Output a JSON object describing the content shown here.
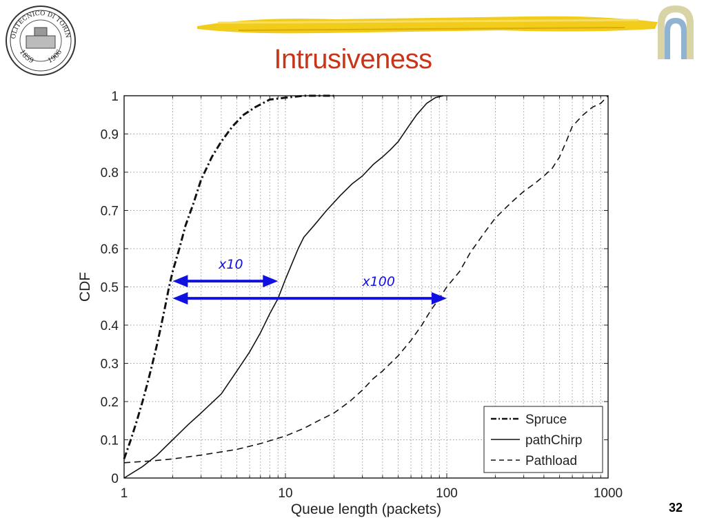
{
  "slide": {
    "title": "Intrusiveness",
    "page_number": "32",
    "logo_left_text": [
      "POLITECNICO DI TORINO",
      "1859",
      "1906"
    ]
  },
  "colors": {
    "title": "#c8361a",
    "annotation_arrows": "#1010e0",
    "brush_stroke": "#f2cc1a"
  },
  "icons": [
    "politecnico-seal-icon",
    "gold-brush-stroke-icon",
    "arch-logo-icon"
  ],
  "chart_data": {
    "type": "line",
    "xscale": "log",
    "xlim": [
      1,
      1000
    ],
    "ylim": [
      0,
      1
    ],
    "xlabel": "Queue length (packets)",
    "ylabel": "CDF",
    "xticks": [
      1,
      10,
      100,
      1000
    ],
    "xtick_labels": [
      "1",
      "10",
      "100",
      "1000"
    ],
    "yticks": [
      0,
      0.1,
      0.2,
      0.3,
      0.4,
      0.5,
      0.6,
      0.7,
      0.8,
      0.9,
      1
    ],
    "ytick_labels": [
      "0",
      "0.1",
      "0.2",
      "0.3",
      "0.4",
      "0.5",
      "0.6",
      "0.7",
      "0.8",
      "0.9",
      "1"
    ],
    "grid": true,
    "legend_position": "bottom-right",
    "series": [
      {
        "name": "Spruce",
        "dash": "dashdot",
        "points": [
          [
            1,
            0.05
          ],
          [
            1.1,
            0.1
          ],
          [
            1.2,
            0.15
          ],
          [
            1.3,
            0.2
          ],
          [
            1.4,
            0.25
          ],
          [
            1.5,
            0.3
          ],
          [
            1.6,
            0.35
          ],
          [
            1.7,
            0.4
          ],
          [
            1.8,
            0.45
          ],
          [
            1.9,
            0.5
          ],
          [
            2.0,
            0.54
          ],
          [
            2.2,
            0.6
          ],
          [
            2.4,
            0.66
          ],
          [
            2.7,
            0.72
          ],
          [
            3.0,
            0.78
          ],
          [
            3.5,
            0.84
          ],
          [
            4.0,
            0.88
          ],
          [
            4.7,
            0.92
          ],
          [
            5.5,
            0.95
          ],
          [
            6.5,
            0.97
          ],
          [
            8,
            0.99
          ],
          [
            10,
            0.995
          ],
          [
            13,
            1.0
          ],
          [
            20,
            1.0
          ]
        ]
      },
      {
        "name": "pathChirp",
        "dash": "solid",
        "points": [
          [
            1,
            0
          ],
          [
            1.3,
            0.03
          ],
          [
            1.6,
            0.06
          ],
          [
            2,
            0.1
          ],
          [
            2.5,
            0.14
          ],
          [
            3,
            0.17
          ],
          [
            4,
            0.22
          ],
          [
            5,
            0.28
          ],
          [
            6,
            0.33
          ],
          [
            7,
            0.38
          ],
          [
            8,
            0.43
          ],
          [
            9,
            0.47
          ],
          [
            10,
            0.52
          ],
          [
            12,
            0.6
          ],
          [
            13,
            0.63
          ],
          [
            15,
            0.66
          ],
          [
            18,
            0.7
          ],
          [
            22,
            0.74
          ],
          [
            26,
            0.77
          ],
          [
            30,
            0.79
          ],
          [
            35,
            0.82
          ],
          [
            40,
            0.84
          ],
          [
            45,
            0.86
          ],
          [
            50,
            0.88
          ],
          [
            58,
            0.92
          ],
          [
            65,
            0.95
          ],
          [
            75,
            0.98
          ],
          [
            85,
            0.995
          ],
          [
            95,
            1.0
          ]
        ]
      },
      {
        "name": "Pathload",
        "dash": "dashed",
        "points": [
          [
            1,
            0.04
          ],
          [
            1.5,
            0.045
          ],
          [
            2,
            0.05
          ],
          [
            3,
            0.06
          ],
          [
            5,
            0.075
          ],
          [
            7,
            0.09
          ],
          [
            10,
            0.11
          ],
          [
            13,
            0.13
          ],
          [
            16,
            0.15
          ],
          [
            20,
            0.17
          ],
          [
            25,
            0.2
          ],
          [
            30,
            0.23
          ],
          [
            35,
            0.26
          ],
          [
            40,
            0.28
          ],
          [
            50,
            0.32
          ],
          [
            60,
            0.36
          ],
          [
            70,
            0.4
          ],
          [
            80,
            0.44
          ],
          [
            90,
            0.47
          ],
          [
            100,
            0.5
          ],
          [
            120,
            0.54
          ],
          [
            140,
            0.59
          ],
          [
            170,
            0.64
          ],
          [
            200,
            0.68
          ],
          [
            250,
            0.72
          ],
          [
            300,
            0.75
          ],
          [
            350,
            0.77
          ],
          [
            400,
            0.79
          ],
          [
            450,
            0.81
          ],
          [
            500,
            0.84
          ],
          [
            550,
            0.88
          ],
          [
            600,
            0.92
          ],
          [
            700,
            0.95
          ],
          [
            800,
            0.97
          ],
          [
            900,
            0.98
          ],
          [
            1000,
            1.0
          ]
        ]
      }
    ],
    "annotations": [
      {
        "label": "x10",
        "arrow_from": [
          2,
          0.515
        ],
        "arrow_to": [
          9,
          0.515
        ]
      },
      {
        "label": "x100",
        "arrow_from": [
          2,
          0.47
        ],
        "arrow_to": [
          100,
          0.47
        ]
      }
    ]
  }
}
